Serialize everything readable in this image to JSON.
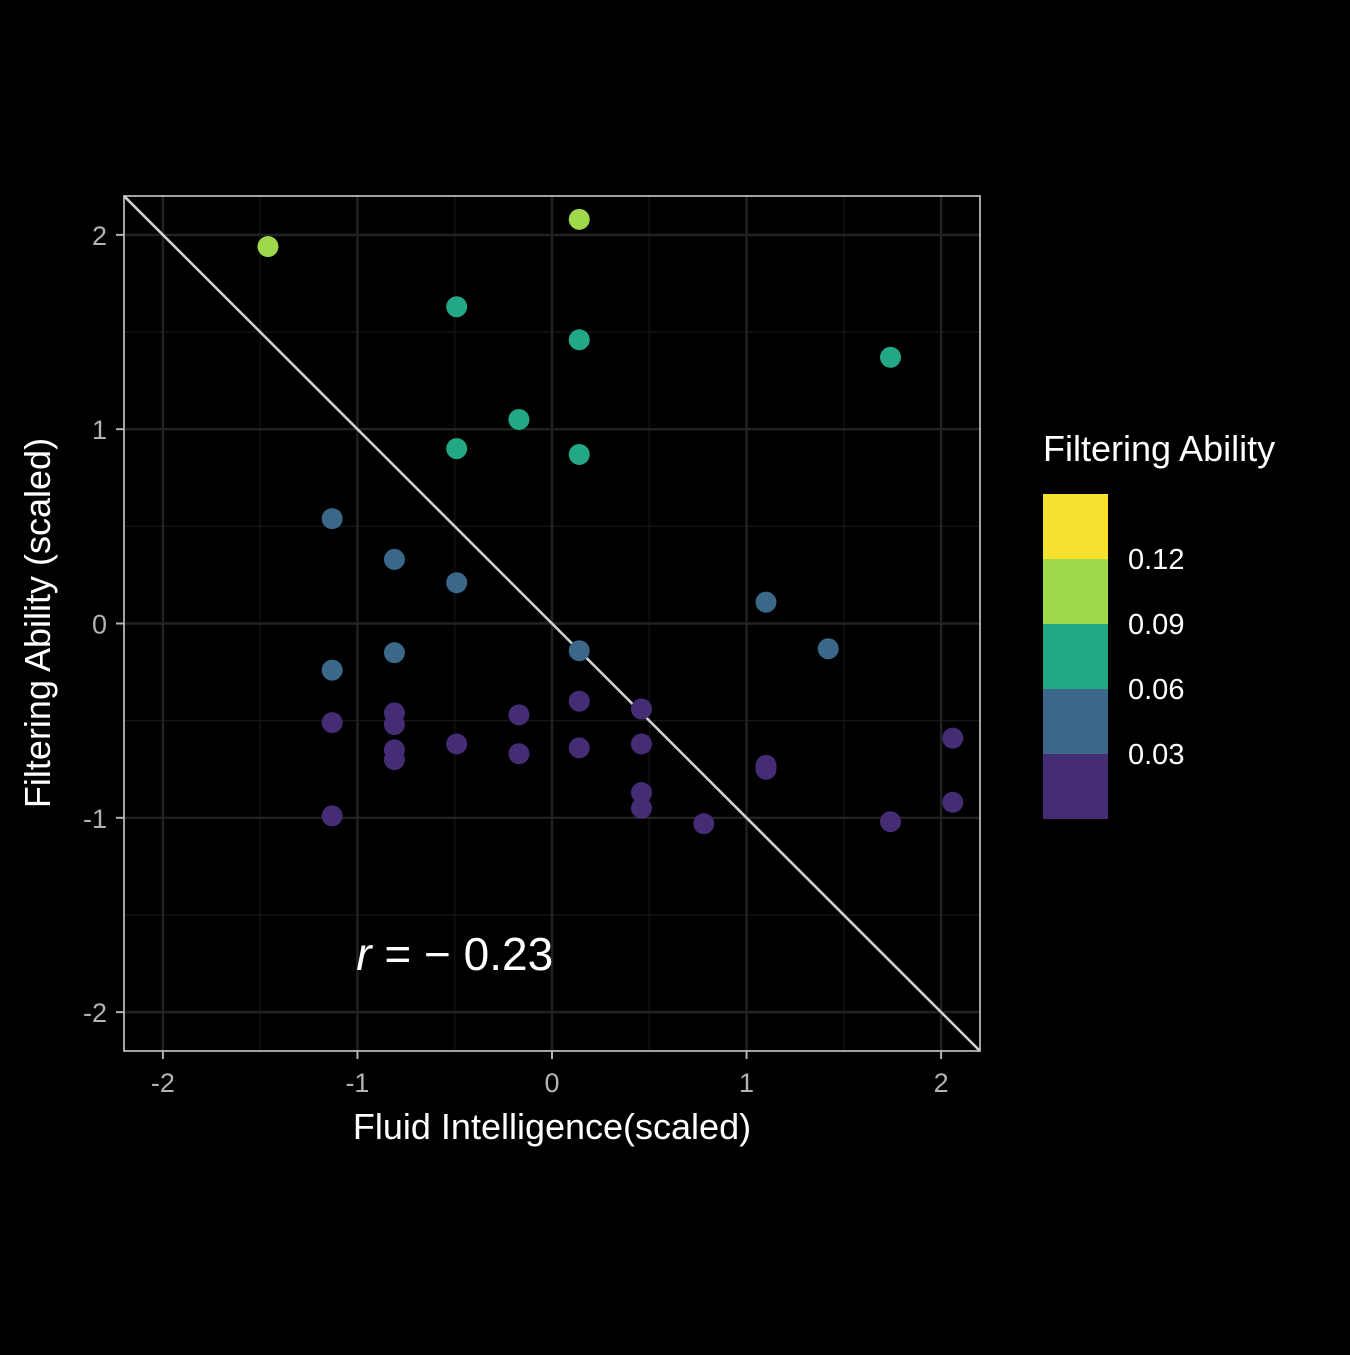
{
  "chart_data": {
    "type": "scatter",
    "xlabel": "Fluid Intelligence(scaled)",
    "ylabel": "Filtering Ability (scaled)",
    "xlim": [
      -2.2,
      2.2
    ],
    "ylim": [
      -2.2,
      2.2
    ],
    "x_ticks": [
      -2,
      -1,
      0,
      1,
      2
    ],
    "y_ticks": [
      -2,
      -1,
      0,
      1,
      2
    ],
    "x_tick_labels": [
      "-2",
      "-1",
      "0",
      "1",
      "2"
    ],
    "y_tick_labels": [
      "-2",
      "-1",
      "0",
      "1",
      "2"
    ],
    "grid": true,
    "reference_line": {
      "slope": -1,
      "intercept": 0
    },
    "annotation": {
      "italic": "r",
      "text": " = − 0.23",
      "x": -0.5,
      "y": -1.7
    },
    "legend": {
      "title": "Filtering Ability",
      "placement": "right",
      "labels": [
        "0.12",
        "0.09",
        "0.06",
        "0.03"
      ],
      "bins": [
        {
          "color": "#f5e12e"
        },
        {
          "color": "#9fd84a"
        },
        {
          "color": "#23a885"
        },
        {
          "color": "#3b6889"
        },
        {
          "color": "#452d75"
        }
      ]
    },
    "points": [
      {
        "x": -1.46,
        "y": 1.94,
        "bin": 1
      },
      {
        "x": 0.14,
        "y": 2.08,
        "bin": 1
      },
      {
        "x": -0.49,
        "y": 1.63,
        "bin": 2
      },
      {
        "x": 0.14,
        "y": 1.46,
        "bin": 2
      },
      {
        "x": 1.74,
        "y": 1.37,
        "bin": 2
      },
      {
        "x": -0.17,
        "y": 1.05,
        "bin": 2
      },
      {
        "x": -0.49,
        "y": 0.9,
        "bin": 2
      },
      {
        "x": 0.14,
        "y": 0.87,
        "bin": 2
      },
      {
        "x": -1.13,
        "y": 0.54,
        "bin": 3
      },
      {
        "x": -0.81,
        "y": 0.33,
        "bin": 3
      },
      {
        "x": -0.49,
        "y": 0.21,
        "bin": 3
      },
      {
        "x": 1.1,
        "y": 0.11,
        "bin": 3
      },
      {
        "x": -0.81,
        "y": -0.15,
        "bin": 3
      },
      {
        "x": 0.14,
        "y": -0.14,
        "bin": 3
      },
      {
        "x": 1.42,
        "y": -0.13,
        "bin": 3
      },
      {
        "x": -1.13,
        "y": -0.24,
        "bin": 3
      },
      {
        "x": 0.14,
        "y": -0.4,
        "bin": 4
      },
      {
        "x": 0.46,
        "y": -0.44,
        "bin": 4
      },
      {
        "x": -0.81,
        "y": -0.46,
        "bin": 4
      },
      {
        "x": -0.17,
        "y": -0.47,
        "bin": 4
      },
      {
        "x": -1.13,
        "y": -0.51,
        "bin": 4
      },
      {
        "x": -0.81,
        "y": -0.52,
        "bin": 4
      },
      {
        "x": 2.06,
        "y": -0.59,
        "bin": 4
      },
      {
        "x": -0.49,
        "y": -0.62,
        "bin": 4
      },
      {
        "x": 0.46,
        "y": -0.62,
        "bin": 4
      },
      {
        "x": 0.14,
        "y": -0.64,
        "bin": 4
      },
      {
        "x": -0.81,
        "y": -0.65,
        "bin": 4
      },
      {
        "x": -0.17,
        "y": -0.67,
        "bin": 4
      },
      {
        "x": -0.81,
        "y": -0.7,
        "bin": 4
      },
      {
        "x": 1.1,
        "y": -0.73,
        "bin": 4
      },
      {
        "x": 1.1,
        "y": -0.75,
        "bin": 4
      },
      {
        "x": 0.46,
        "y": -0.87,
        "bin": 4
      },
      {
        "x": 2.06,
        "y": -0.92,
        "bin": 4
      },
      {
        "x": 0.46,
        "y": -0.95,
        "bin": 4
      },
      {
        "x": -1.13,
        "y": -0.99,
        "bin": 4
      },
      {
        "x": 1.74,
        "y": -1.02,
        "bin": 4
      },
      {
        "x": 0.78,
        "y": -1.03,
        "bin": 4
      }
    ]
  }
}
